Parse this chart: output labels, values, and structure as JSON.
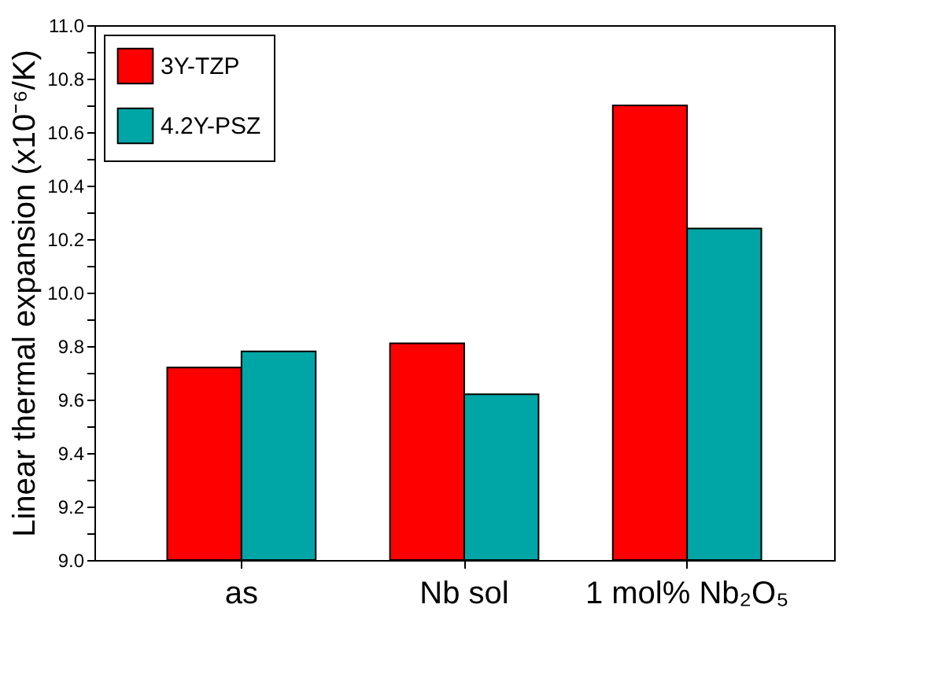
{
  "chart_data": {
    "type": "bar",
    "ylabel": "Linear thermal expansion (x10⁻⁶/K)",
    "categories": [
      "as",
      "Nb sol",
      "1 mol% Nb₂O₅"
    ],
    "series": [
      {
        "name": "3Y-TZP",
        "color": "#ff0000",
        "values": [
          9.72,
          9.81,
          10.7
        ]
      },
      {
        "name": "4.2Y-PSZ",
        "color": "#00a6a6",
        "values": [
          9.78,
          9.62,
          10.24
        ]
      }
    ],
    "ylim": [
      9.0,
      11.0
    ],
    "yticks": [
      {
        "value": 9,
        "label": "9.0"
      },
      {
        "value": 9.1,
        "label": null
      },
      9.2,
      {
        "value": 9.3,
        "label": null
      },
      9.4,
      {
        "value": 9.5,
        "label": null
      },
      9.6,
      {
        "value": 9.7,
        "label": null
      },
      9.8,
      {
        "value": 9.9,
        "label": null
      },
      {
        "value": 10,
        "label": "10.0"
      },
      {
        "value": 10.1,
        "label": null
      },
      10.2,
      {
        "value": 10.3,
        "label": null
      },
      10.4,
      {
        "value": 10.5,
        "label": null
      },
      10.6,
      {
        "value": 10.7,
        "label": null
      },
      10.8,
      {
        "value": 10.9,
        "label": null
      },
      {
        "value": 11,
        "label": "11.0"
      }
    ],
    "legend": "top left"
  }
}
